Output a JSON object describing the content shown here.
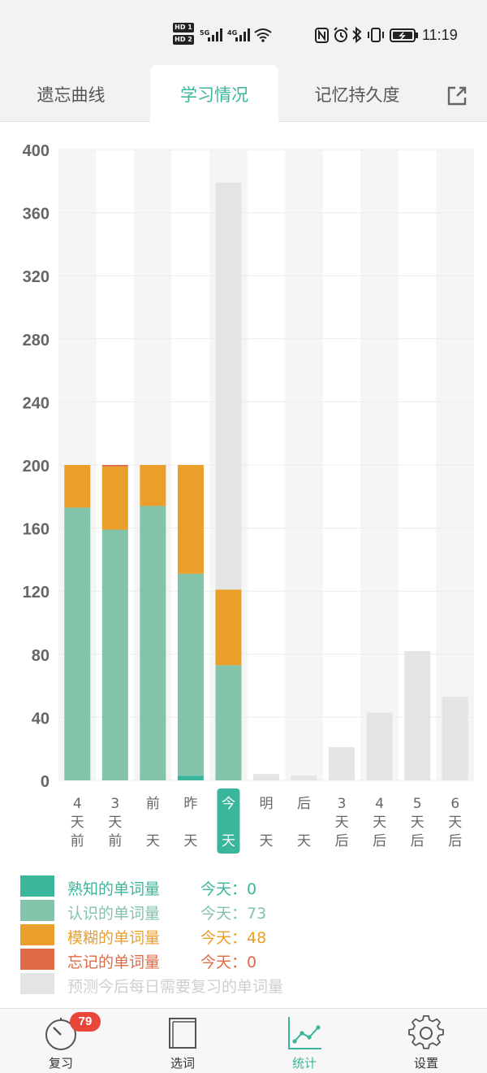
{
  "status_bar": {
    "hd1": "HD 1",
    "hd2": "HD 2",
    "net1": "5G",
    "net2": "4G",
    "time": "11:19"
  },
  "tabs": [
    {
      "label": "遗忘曲线",
      "active": false
    },
    {
      "label": "学习情况",
      "active": true
    },
    {
      "label": "记忆持久度",
      "active": false
    }
  ],
  "chart_data": {
    "type": "bar",
    "stacked": true,
    "ylim": [
      0,
      400
    ],
    "yticks": [
      "0",
      "40",
      "80",
      "120",
      "160",
      "200",
      "240",
      "280",
      "320",
      "360",
      "400"
    ],
    "categories": [
      [
        "4",
        "天",
        "前"
      ],
      [
        "3",
        "天",
        "前"
      ],
      [
        "前",
        "",
        "天"
      ],
      [
        "昨",
        "",
        "天"
      ],
      [
        "今",
        "",
        "天"
      ],
      [
        "明",
        "",
        "天"
      ],
      [
        "后",
        "",
        "天"
      ],
      [
        "3",
        "天",
        "后"
      ],
      [
        "4",
        "天",
        "后"
      ],
      [
        "5",
        "天",
        "后"
      ],
      [
        "6",
        "天",
        "后"
      ]
    ],
    "highlight_index": 4,
    "series": [
      {
        "key": "familiar",
        "color": "#3bb59b",
        "values": [
          0,
          0,
          0,
          3,
          0,
          0,
          0,
          0,
          0,
          0,
          0
        ]
      },
      {
        "key": "known",
        "color": "#82c3aa",
        "values": [
          173,
          159,
          174,
          128,
          73,
          0,
          0,
          0,
          0,
          0,
          0
        ]
      },
      {
        "key": "fuzzy",
        "color": "#eb9f2b",
        "values": [
          27,
          40,
          26,
          69,
          48,
          0,
          0,
          0,
          0,
          0,
          0
        ]
      },
      {
        "key": "forgot",
        "color": "#e06a45",
        "values": [
          0,
          1,
          0,
          0,
          0,
          0,
          0,
          0,
          0,
          0,
          0
        ]
      },
      {
        "key": "forecast",
        "color": "#e4e4e4",
        "values": [
          0,
          0,
          0,
          0,
          258,
          4,
          3,
          21,
          43,
          82,
          53
        ]
      }
    ]
  },
  "legend": [
    {
      "label": "熟知的单词量",
      "today": "今天：0",
      "color": "#3bb59b"
    },
    {
      "label": "认识的单词量",
      "today": "今天：73",
      "color": "#82c3aa"
    },
    {
      "label": "模糊的单词量",
      "today": "今天：48",
      "color": "#eb9f2b"
    },
    {
      "label": "忘记的单词量",
      "today": "今天：0",
      "color": "#e06a45"
    },
    {
      "label": "预测今后每日需要复习的单词量",
      "today": "",
      "color": "#e4e4e4"
    }
  ],
  "nav": [
    {
      "label": "复习",
      "icon": "review-timer-icon",
      "badge": "79",
      "active": false
    },
    {
      "label": "选词",
      "icon": "word-book-icon",
      "active": false
    },
    {
      "label": "统计",
      "icon": "stats-line-icon",
      "active": true
    },
    {
      "label": "设置",
      "icon": "gear-icon",
      "active": false
    }
  ],
  "colors": {
    "accent": "#3bb59b",
    "known": "#82c3aa",
    "fuzzy": "#eb9f2b",
    "forgot": "#e06a45",
    "forecast": "#e4e4e4",
    "badge": "#e8463b"
  }
}
